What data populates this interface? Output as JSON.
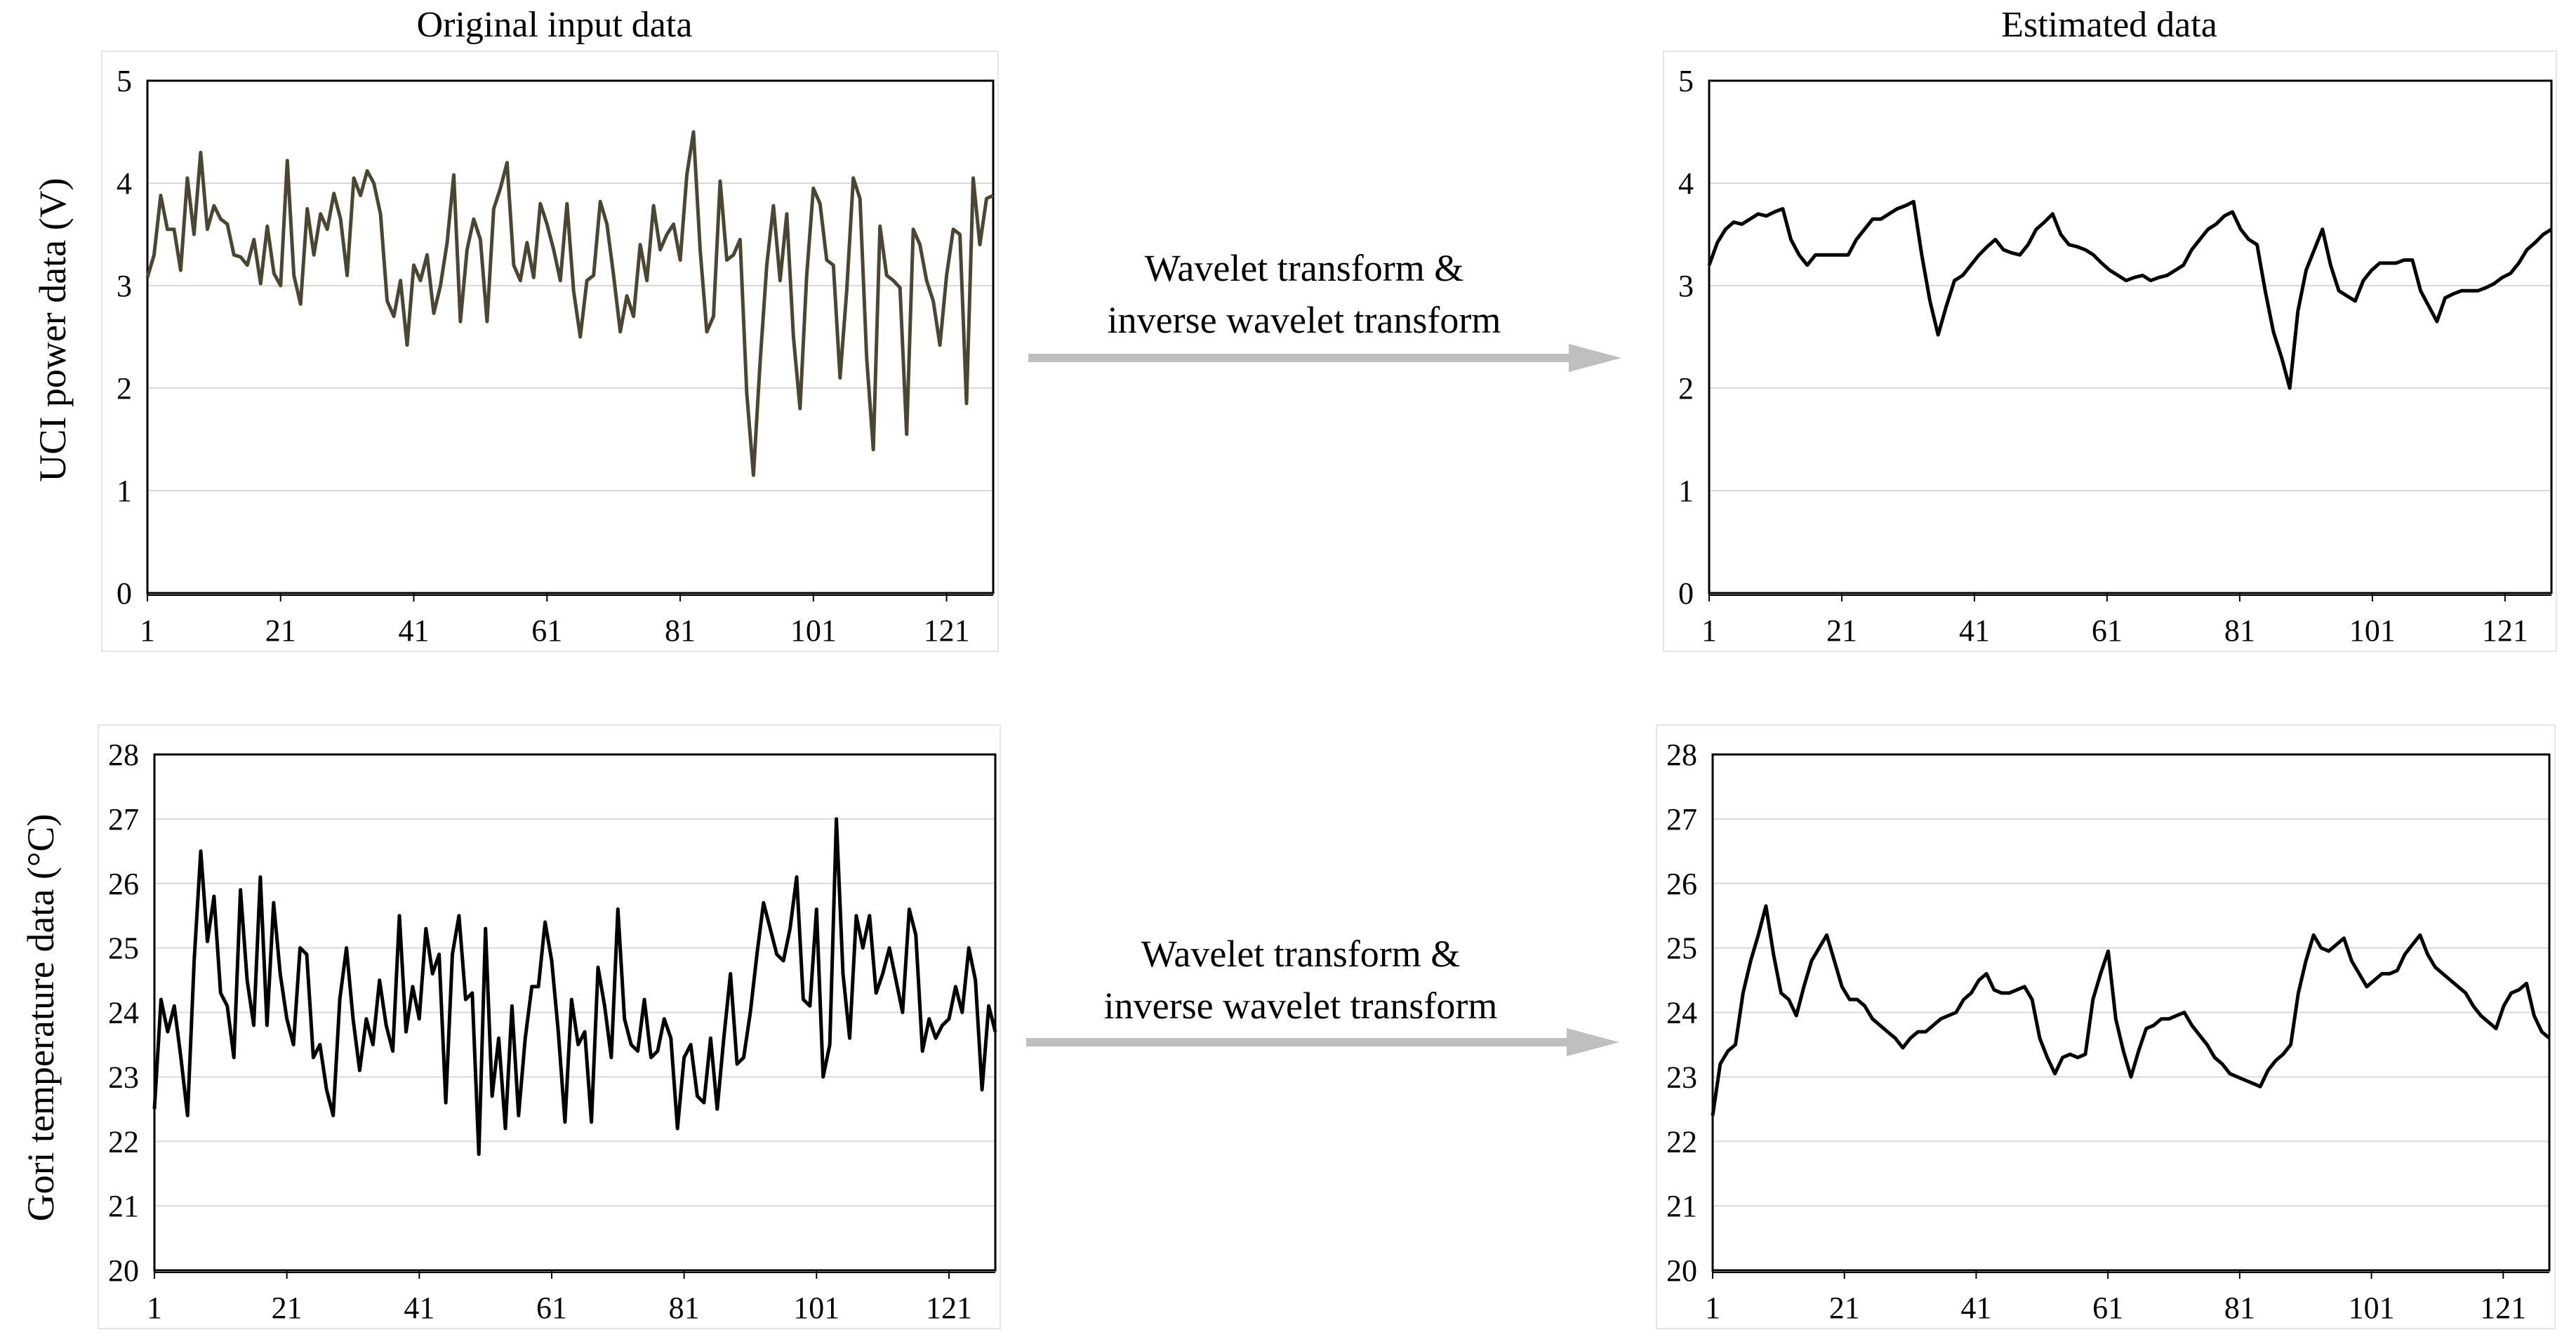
{
  "column_titles": {
    "original": "Original input data",
    "estimated": "Estimated data"
  },
  "y_axis_titles": {
    "power": "UCI power data (V)",
    "temperature": "Gori temperature data (°C)"
  },
  "arrows": [
    {
      "line1": "Wavelet transform &",
      "line2": "inverse wavelet transform"
    },
    {
      "line1": "Wavelet transform &",
      "line2": "inverse wavelet transform"
    }
  ],
  "colors": {
    "original_power_line": "#4a4632",
    "line": "#000000",
    "grid": "#d9d9d9",
    "arrow": "#bfbfbf"
  },
  "chart_data": [
    {
      "type": "line",
      "panel": "original-power",
      "title": "Original input data",
      "ylabel": "UCI power data (V)",
      "xlim": [
        1,
        128
      ],
      "ylim": [
        0,
        5
      ],
      "yticks": [
        0,
        1,
        2,
        3,
        4,
        5
      ],
      "xticks": [
        1,
        21,
        41,
        61,
        81,
        101,
        121
      ],
      "grid": true,
      "series": [
        {
          "values": [
            3.08,
            3.3,
            3.88,
            3.55,
            3.55,
            3.15,
            4.05,
            3.5,
            4.3,
            3.55,
            3.78,
            3.65,
            3.6,
            3.3,
            3.28,
            3.2,
            3.45,
            3.02,
            3.58,
            3.12,
            3.0,
            4.22,
            3.1,
            2.82,
            3.75,
            3.3,
            3.7,
            3.55,
            3.9,
            3.65,
            3.1,
            4.05,
            3.88,
            4.12,
            4.0,
            3.7,
            2.85,
            2.7,
            3.05,
            2.42,
            3.2,
            3.05,
            3.3,
            2.73,
            3.0,
            3.42,
            4.08,
            2.65,
            3.35,
            3.65,
            3.45,
            2.65,
            3.75,
            3.95,
            4.2,
            3.2,
            3.05,
            3.42,
            3.08,
            3.8,
            3.6,
            3.35,
            3.05,
            3.8,
            2.95,
            2.5,
            3.05,
            3.1,
            3.82,
            3.6,
            3.1,
            2.55,
            2.9,
            2.7,
            3.4,
            3.05,
            3.78,
            3.35,
            3.5,
            3.6,
            3.25,
            4.08,
            4.5,
            3.35,
            2.55,
            2.7,
            4.02,
            3.25,
            3.3,
            3.45,
            1.95,
            1.15,
            2.25,
            3.2,
            3.78,
            3.05,
            3.7,
            2.5,
            1.8,
            3.1,
            3.95,
            3.8,
            3.25,
            3.2,
            2.1,
            2.95,
            4.05,
            3.85,
            2.3,
            1.4,
            3.58,
            3.1,
            3.05,
            2.98,
            1.55,
            3.55,
            3.4,
            3.05,
            2.85,
            2.42,
            3.1,
            3.55,
            3.5,
            1.85,
            4.05,
            3.4,
            3.85,
            3.88
          ]
        }
      ]
    },
    {
      "type": "line",
      "panel": "estimated-power",
      "title": "Estimated data",
      "ylabel": "",
      "xlim": [
        1,
        128
      ],
      "ylim": [
        0,
        5
      ],
      "yticks": [
        0,
        1,
        2,
        3,
        4,
        5
      ],
      "xticks": [
        1,
        21,
        41,
        61,
        81,
        101,
        121
      ],
      "grid": true,
      "series": [
        {
          "values": [
            3.2,
            3.42,
            3.55,
            3.62,
            3.6,
            3.65,
            3.7,
            3.68,
            3.72,
            3.75,
            3.45,
            3.3,
            3.2,
            3.3,
            3.3,
            3.3,
            3.3,
            3.3,
            3.45,
            3.55,
            3.65,
            3.65,
            3.7,
            3.75,
            3.78,
            3.82,
            3.3,
            2.85,
            2.52,
            2.8,
            3.05,
            3.1,
            3.2,
            3.3,
            3.38,
            3.45,
            3.35,
            3.32,
            3.3,
            3.4,
            3.55,
            3.62,
            3.7,
            3.5,
            3.4,
            3.38,
            3.35,
            3.3,
            3.22,
            3.15,
            3.1,
            3.05,
            3.08,
            3.1,
            3.05,
            3.08,
            3.1,
            3.15,
            3.2,
            3.35,
            3.45,
            3.55,
            3.6,
            3.68,
            3.72,
            3.55,
            3.45,
            3.4,
            2.95,
            2.55,
            2.3,
            2.0,
            2.75,
            3.15,
            3.35,
            3.55,
            3.2,
            2.95,
            2.9,
            2.85,
            3.05,
            3.15,
            3.22,
            3.22,
            3.22,
            3.25,
            3.25,
            2.95,
            2.8,
            2.65,
            2.88,
            2.92,
            2.95,
            2.95,
            2.95,
            2.98,
            3.02,
            3.08,
            3.12,
            3.22,
            3.35,
            3.42,
            3.5,
            3.55
          ]
        }
      ]
    },
    {
      "type": "line",
      "panel": "original-temperature",
      "title": "",
      "ylabel": "Gori temperature data (°C)",
      "xlim": [
        1,
        128
      ],
      "ylim": [
        20,
        28
      ],
      "yticks": [
        20,
        21,
        22,
        23,
        24,
        25,
        26,
        27,
        28
      ],
      "xticks": [
        1,
        21,
        41,
        61,
        81,
        101,
        121
      ],
      "grid": true,
      "series": [
        {
          "values": [
            22.5,
            24.2,
            23.7,
            24.1,
            23.3,
            22.4,
            24.8,
            26.5,
            25.1,
            25.8,
            24.3,
            24.1,
            23.3,
            25.9,
            24.5,
            23.8,
            26.1,
            23.8,
            25.7,
            24.6,
            23.9,
            23.5,
            25.0,
            24.9,
            23.3,
            23.5,
            22.8,
            22.4,
            24.2,
            25.0,
            23.9,
            23.1,
            23.9,
            23.5,
            24.5,
            23.8,
            23.4,
            25.5,
            23.7,
            24.4,
            23.9,
            25.3,
            24.6,
            24.9,
            22.6,
            24.9,
            25.5,
            24.2,
            24.3,
            21.8,
            25.3,
            22.7,
            23.6,
            22.2,
            24.1,
            22.4,
            23.6,
            24.4,
            24.4,
            25.4,
            24.8,
            23.7,
            22.3,
            24.2,
            23.5,
            23.7,
            22.3,
            24.7,
            24.1,
            23.3,
            25.6,
            23.9,
            23.5,
            23.4,
            24.2,
            23.3,
            23.4,
            23.9,
            23.6,
            22.2,
            23.3,
            23.5,
            22.7,
            22.6,
            23.6,
            22.5,
            23.6,
            24.6,
            23.2,
            23.3,
            24.0,
            24.9,
            25.7,
            25.3,
            24.9,
            24.8,
            25.3,
            26.1,
            24.2,
            24.1,
            25.6,
            23.0,
            23.5,
            27.0,
            24.6,
            23.6,
            25.5,
            25.0,
            25.5,
            24.3,
            24.6,
            25.0,
            24.5,
            24.0,
            25.6,
            25.2,
            23.4,
            23.9,
            23.6,
            23.8,
            23.9,
            24.4,
            24.0,
            25.0,
            24.5,
            22.8,
            24.1,
            23.7
          ]
        }
      ]
    },
    {
      "type": "line",
      "panel": "estimated-temperature",
      "title": "",
      "ylabel": "",
      "xlim": [
        1,
        128
      ],
      "ylim": [
        20,
        28
      ],
      "yticks": [
        20,
        21,
        22,
        23,
        24,
        25,
        26,
        27,
        28
      ],
      "xticks": [
        1,
        21,
        41,
        61,
        81,
        101,
        121
      ],
      "grid": true,
      "series": [
        {
          "values": [
            22.4,
            23.2,
            23.4,
            23.5,
            24.3,
            24.8,
            25.2,
            25.65,
            24.9,
            24.3,
            24.2,
            23.95,
            24.4,
            24.8,
            25.0,
            25.2,
            24.8,
            24.4,
            24.2,
            24.2,
            24.1,
            23.9,
            23.8,
            23.7,
            23.6,
            23.45,
            23.6,
            23.7,
            23.7,
            23.8,
            23.9,
            23.95,
            24.0,
            24.2,
            24.3,
            24.5,
            24.6,
            24.35,
            24.3,
            24.3,
            24.35,
            24.4,
            24.2,
            23.6,
            23.3,
            23.05,
            23.3,
            23.35,
            23.3,
            23.35,
            24.2,
            24.6,
            24.95,
            23.9,
            23.4,
            23.0,
            23.4,
            23.75,
            23.8,
            23.9,
            23.9,
            23.95,
            24.0,
            23.8,
            23.65,
            23.5,
            23.3,
            23.2,
            23.05,
            23.0,
            22.95,
            22.9,
            22.85,
            23.1,
            23.25,
            23.35,
            23.5,
            24.3,
            24.8,
            25.2,
            25.0,
            24.95,
            25.05,
            25.15,
            24.8,
            24.6,
            24.4,
            24.5,
            24.6,
            24.6,
            24.65,
            24.9,
            25.05,
            25.2,
            24.9,
            24.7,
            24.6,
            24.5,
            24.4,
            24.3,
            24.1,
            23.95,
            23.85,
            23.75,
            24.1,
            24.3,
            24.35,
            24.45,
            23.95,
            23.7,
            23.6
          ]
        }
      ]
    }
  ]
}
